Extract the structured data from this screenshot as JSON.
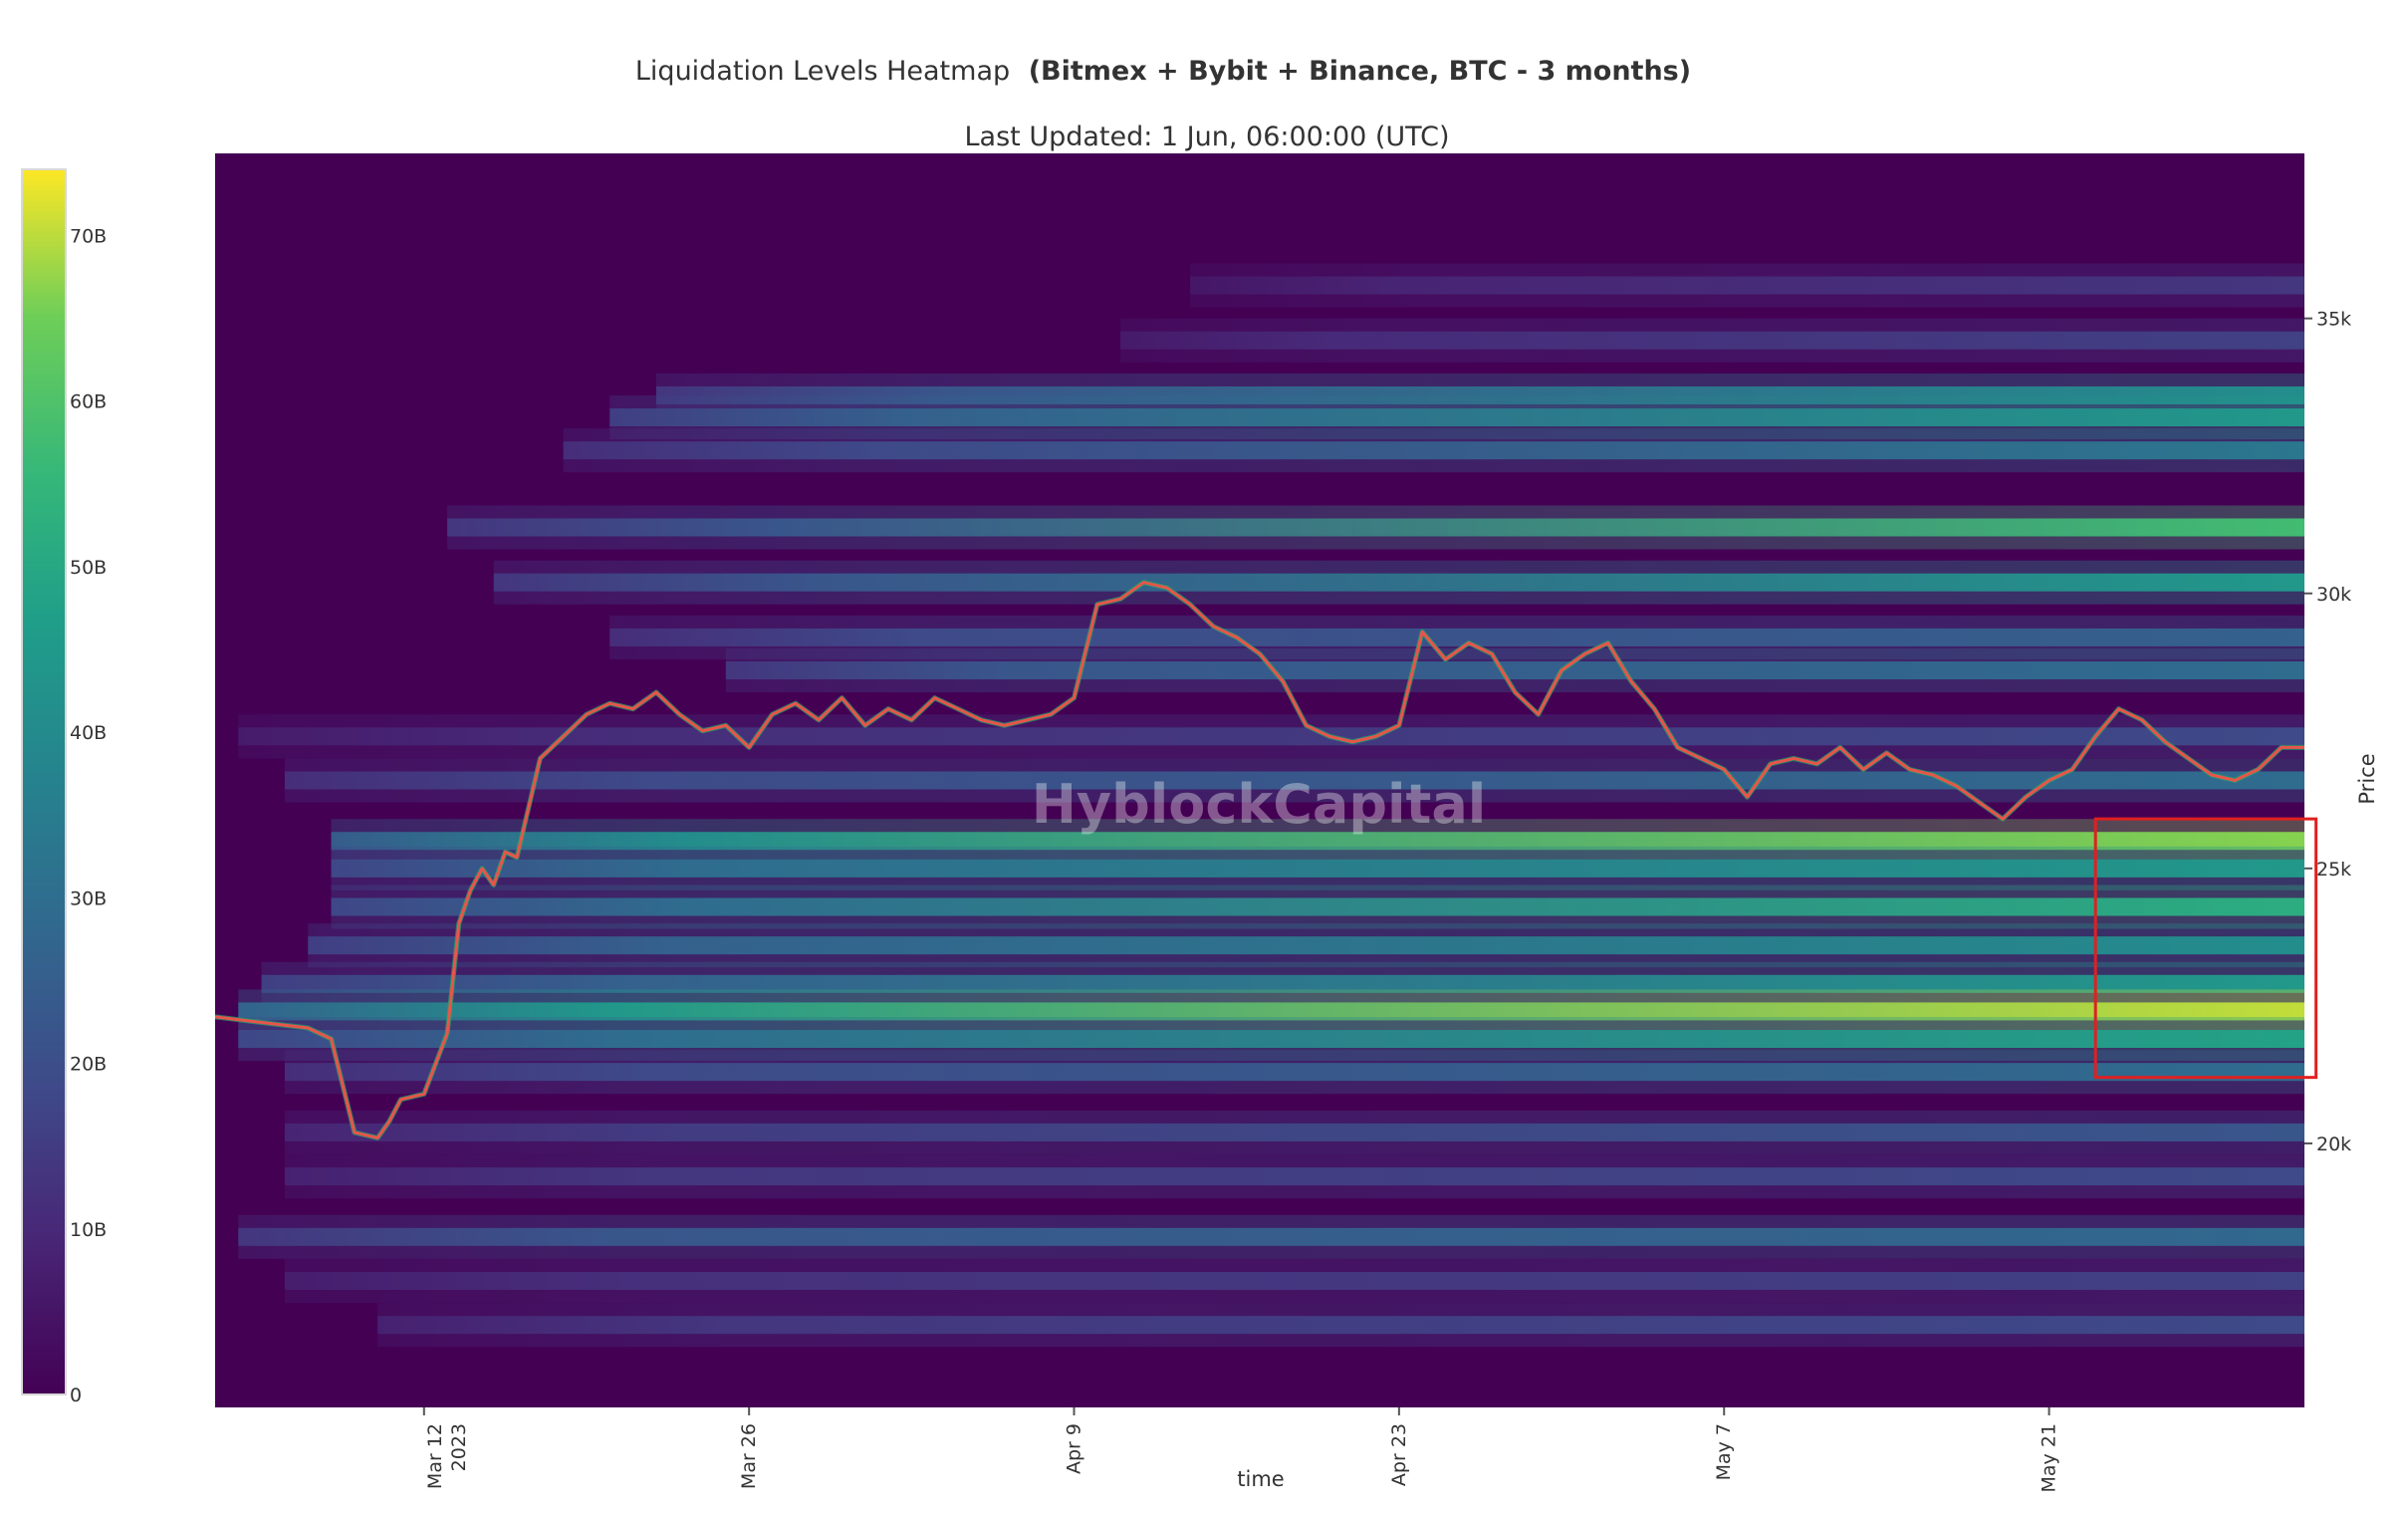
{
  "chart_data": {
    "type": "heatmap",
    "title": "Liquidation Levels Heatmap",
    "title_bold": "(Bitmex + Bybit + Binance, BTC - 3 months)",
    "subtitle": "Last Updated: 1 Jun, 06:00:00 (UTC)",
    "xlabel": "time",
    "ylabel": "Price",
    "watermark": "HyblockCapital",
    "x_tick_labels": [
      "Mar 12\n2023",
      "Mar 26",
      "Apr 9",
      "Apr 23",
      "May 7",
      "May 21"
    ],
    "x_ticks_day": [
      12,
      26,
      40,
      54,
      68,
      82
    ],
    "x_range_days": [
      3,
      93
    ],
    "y_tick_labels": [
      "35k",
      "30k",
      "25k",
      "20k"
    ],
    "y_ticks": [
      35000,
      30000,
      25000,
      20000
    ],
    "ylim": [
      15200,
      38000
    ],
    "colorscale": "viridis",
    "colorbar": {
      "tick_labels": [
        "0",
        "10B",
        "20B",
        "30B",
        "40B",
        "50B",
        "60B",
        "70B"
      ],
      "ticks": [
        0,
        10,
        20,
        30,
        40,
        50,
        60,
        70
      ],
      "range": [
        0,
        74
      ]
    },
    "liquidation_bands": [
      {
        "price": 35600,
        "start_day": 45,
        "strength": [
          0.12,
          0.18
        ]
      },
      {
        "price": 34600,
        "start_day": 42,
        "strength": [
          0.14,
          0.22
        ]
      },
      {
        "price": 33600,
        "start_day": 22,
        "strength": [
          0.3,
          0.55
        ]
      },
      {
        "price": 33200,
        "start_day": 20,
        "strength": [
          0.35,
          0.6
        ]
      },
      {
        "price": 32600,
        "start_day": 18,
        "strength": [
          0.25,
          0.45
        ]
      },
      {
        "price": 31200,
        "start_day": 13,
        "strength": [
          0.3,
          0.78
        ]
      },
      {
        "price": 30200,
        "start_day": 15,
        "strength": [
          0.3,
          0.6
        ]
      },
      {
        "price": 29200,
        "start_day": 20,
        "strength": [
          0.25,
          0.35
        ]
      },
      {
        "price": 28600,
        "start_day": 25,
        "strength": [
          0.3,
          0.4
        ]
      },
      {
        "price": 27400,
        "start_day": 4,
        "strength": [
          0.15,
          0.25
        ]
      },
      {
        "price": 26600,
        "start_day": 6,
        "strength": [
          0.25,
          0.4
        ]
      },
      {
        "price": 25500,
        "start_day": 8,
        "strength": [
          0.55,
          0.9
        ]
      },
      {
        "price": 25000,
        "start_day": 8,
        "strength": [
          0.4,
          0.6
        ]
      },
      {
        "price": 24300,
        "start_day": 8,
        "strength": [
          0.4,
          0.7
        ]
      },
      {
        "price": 23600,
        "start_day": 7,
        "strength": [
          0.35,
          0.55
        ]
      },
      {
        "price": 22900,
        "start_day": 5,
        "strength": [
          0.35,
          0.6
        ]
      },
      {
        "price": 22400,
        "start_day": 4,
        "strength": [
          0.6,
          0.95
        ]
      },
      {
        "price": 21900,
        "start_day": 4,
        "strength": [
          0.4,
          0.65
        ]
      },
      {
        "price": 21300,
        "start_day": 6,
        "strength": [
          0.25,
          0.4
        ]
      },
      {
        "price": 20200,
        "start_day": 6,
        "strength": [
          0.2,
          0.3
        ]
      },
      {
        "price": 19400,
        "start_day": 6,
        "strength": [
          0.18,
          0.25
        ]
      },
      {
        "price": 18300,
        "start_day": 4,
        "strength": [
          0.3,
          0.38
        ]
      },
      {
        "price": 17500,
        "start_day": 6,
        "strength": [
          0.16,
          0.22
        ]
      },
      {
        "price": 16700,
        "start_day": 10,
        "strength": [
          0.18,
          0.25
        ]
      }
    ],
    "price_series": {
      "name": "BTC",
      "x_days": [
        3,
        5,
        7,
        8,
        9,
        10,
        10.5,
        11,
        12,
        13,
        13.5,
        14,
        14.5,
        15,
        15.5,
        16,
        17,
        18,
        19,
        20,
        21,
        22,
        23,
        24,
        25,
        26,
        27,
        28,
        29,
        30,
        31,
        32,
        33,
        34,
        35,
        36,
        37,
        38,
        39,
        40,
        41,
        42,
        43,
        44,
        45,
        46,
        47,
        48,
        49,
        50,
        51,
        52,
        53,
        54,
        55,
        56,
        57,
        58,
        59,
        60,
        61,
        62,
        63,
        64,
        65,
        66,
        67,
        68,
        69,
        70,
        71,
        72,
        73,
        74,
        75,
        76,
        77,
        78,
        79,
        80,
        81,
        82,
        83,
        84,
        85,
        86,
        87,
        88,
        89,
        90,
        91,
        92,
        93
      ],
      "close": [
        22300,
        22200,
        22100,
        21900,
        20200,
        20100,
        20400,
        20800,
        20900,
        22000,
        24000,
        24600,
        25000,
        24700,
        25300,
        25200,
        27000,
        27400,
        27800,
        28000,
        27900,
        28200,
        27800,
        27500,
        27600,
        27200,
        27800,
        28000,
        27700,
        28100,
        27600,
        27900,
        27700,
        28100,
        27900,
        27700,
        27600,
        27700,
        27800,
        28100,
        29800,
        29900,
        30200,
        30100,
        29800,
        29400,
        29200,
        28900,
        28400,
        27600,
        27400,
        27300,
        27400,
        27600,
        29300,
        28800,
        29100,
        28900,
        28200,
        27800,
        28600,
        28900,
        29100,
        28400,
        27900,
        27200,
        27000,
        26800,
        26300,
        26900,
        27000,
        26900,
        27200,
        26800,
        27100,
        26800,
        26700,
        26500,
        26200,
        25900,
        26300,
        26600,
        26800,
        27400,
        27900,
        27700,
        27300,
        27000,
        26700,
        26600,
        26800,
        27200,
        27200
      ],
      "line_color": "#e8554a",
      "accent_color": "#21a96a"
    },
    "highlight_box": {
      "x_days": [
        84,
        93.5
      ],
      "price": [
        21200,
        25900
      ],
      "color": "#e02020"
    }
  }
}
